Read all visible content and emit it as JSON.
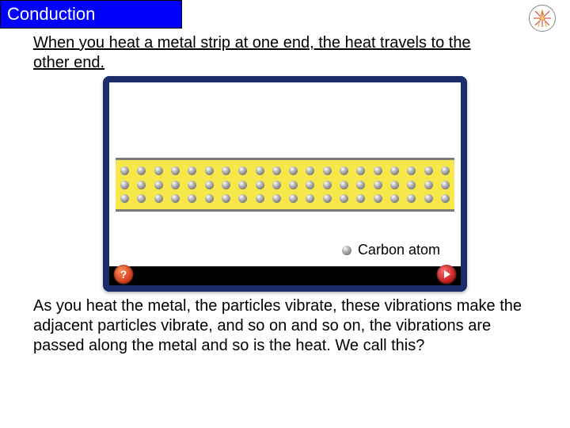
{
  "title": "Conduction",
  "intro": "When you heat a metal strip at one end, the heat travels to the other end.",
  "diagram": {
    "atoms_per_row": 20,
    "rows": 3,
    "strip_color": "#f6e74a",
    "border_color": "#7a7a7a",
    "atom_color": "#9a9a9a",
    "frame_color": "#1a2d6a",
    "legend_label": "Carbon atom",
    "help_symbol": "?",
    "bottom_bar_color": "#000000"
  },
  "outro": "As you heat the metal, the particles vibrate, these vibrations make the adjacent particles vibrate, and so on and so on, the vibrations are passed along the metal and so is the heat. We call this?",
  "colors": {
    "title_bg": "#0000ff",
    "title_fg": "#ffffff",
    "page_bg": "#ffffff",
    "text": "#000000"
  }
}
